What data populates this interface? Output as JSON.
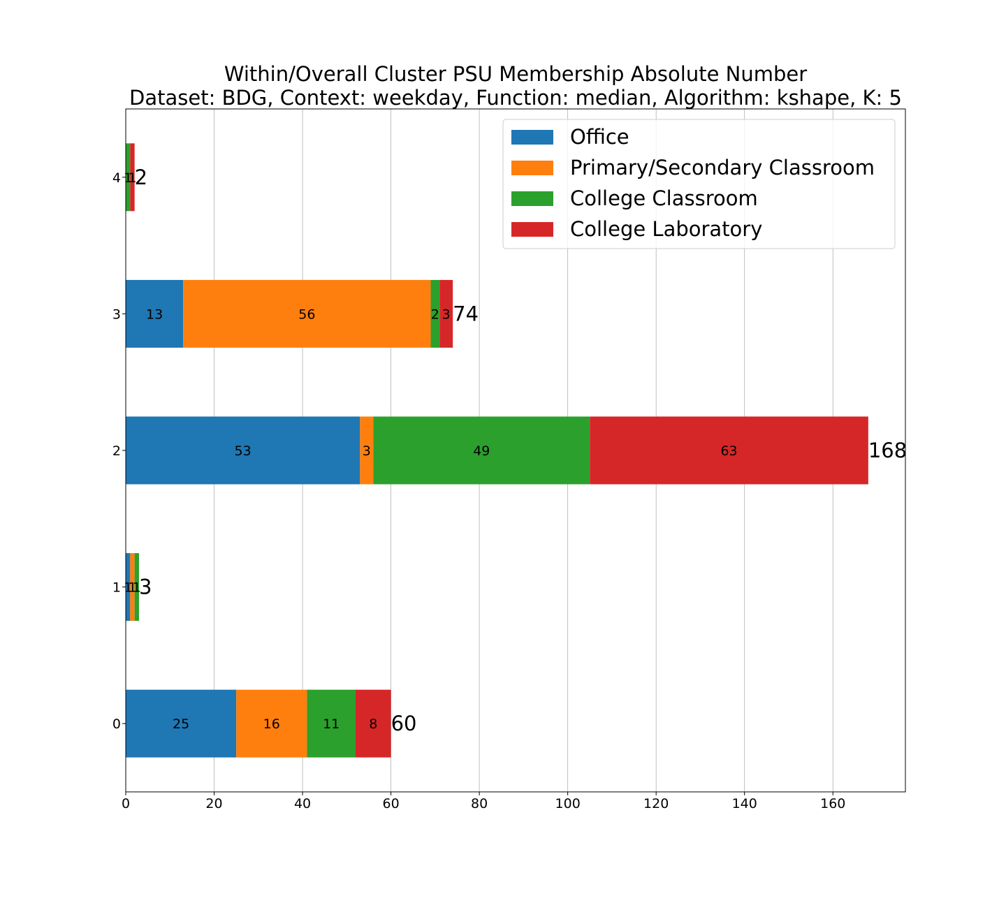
{
  "chart_data": {
    "type": "bar",
    "orientation": "horizontal",
    "stacked": true,
    "title_lines": [
      "Within/Overall Cluster PSU Membership Absolute Number",
      "Dataset: BDG, Context: weekday, Function: median, Algorithm: kshape, K: 5"
    ],
    "xlabel": "",
    "ylabel": "",
    "categories": [
      "0",
      "1",
      "2",
      "3",
      "4"
    ],
    "series": [
      {
        "name": "Office",
        "color": "#1f77b4",
        "values": [
          25,
          1,
          53,
          13,
          0
        ]
      },
      {
        "name": "Primary/Secondary Classroom",
        "color": "#ff7f0e",
        "values": [
          16,
          1,
          3,
          56,
          0
        ]
      },
      {
        "name": "College Classroom",
        "color": "#2ca02c",
        "values": [
          11,
          1,
          49,
          2,
          1
        ]
      },
      {
        "name": "College Laboratory",
        "color": "#d62728",
        "values": [
          8,
          0,
          63,
          3,
          1
        ]
      }
    ],
    "totals": [
      60,
      3,
      168,
      74,
      2
    ],
    "xticks": [
      0,
      20,
      40,
      60,
      80,
      100,
      120,
      140,
      160
    ],
    "xlim": [
      0,
      176.4
    ],
    "grid": "vertical",
    "legend_position": "top-right"
  }
}
